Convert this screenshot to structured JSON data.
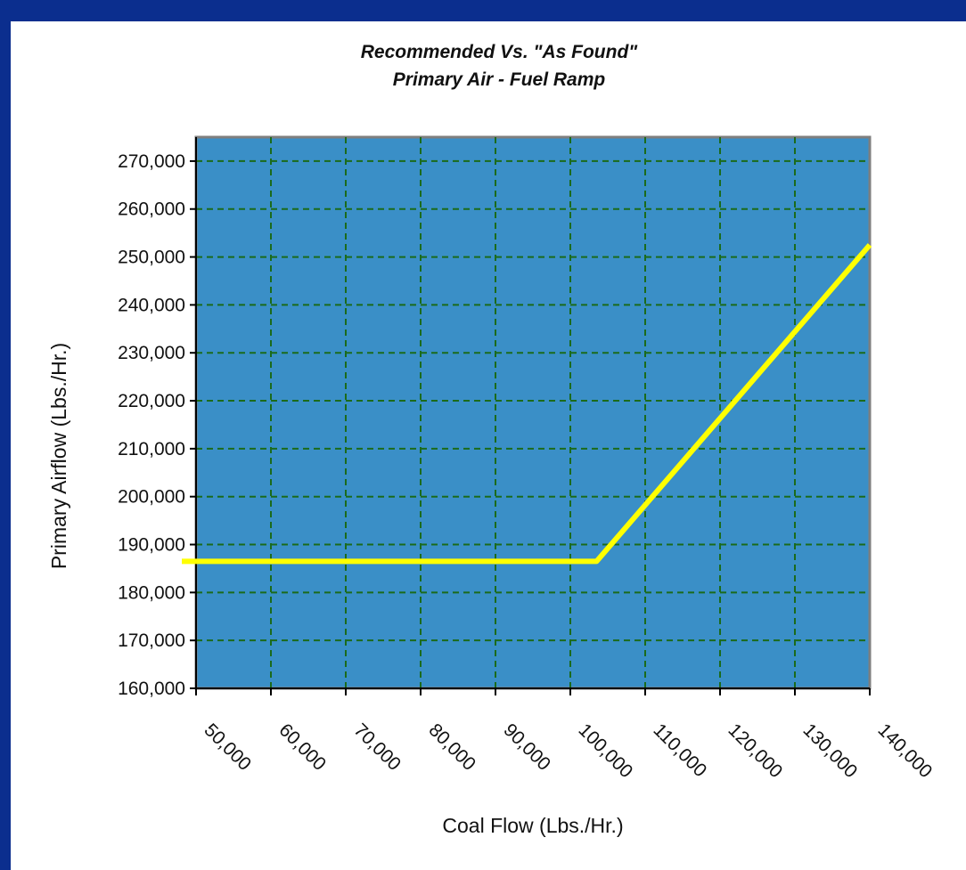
{
  "chart_data": {
    "type": "line",
    "title": "Recommended  Vs. \"As Found\"",
    "subtitle": "Primary Air - Fuel  Ramp",
    "xlabel": "Coal Flow (Lbs./Hr.)",
    "ylabel": "Primary Airflow (Lbs./Hr.)",
    "x_tick_labels": [
      "50,000",
      "60,000",
      "70,000",
      "80,000",
      "90,000",
      "100,000",
      "110,000",
      "120,000",
      "130,000",
      "140,000"
    ],
    "y_tick_labels": [
      "270,000",
      "260,000",
      "250,000",
      "240,000",
      "230,000",
      "220,000",
      "210,000",
      "200,000",
      "190,000",
      "180,000",
      "170,000",
      "160,000"
    ],
    "xlim": [
      50000,
      140000
    ],
    "ylim": [
      160000,
      275000
    ],
    "x_ticks": [
      50000,
      60000,
      70000,
      80000,
      90000,
      100000,
      110000,
      120000,
      130000,
      140000
    ],
    "y_ticks": [
      270000,
      260000,
      250000,
      240000,
      230000,
      220000,
      210000,
      200000,
      190000,
      180000,
      170000,
      160000
    ],
    "grid": true,
    "series": [
      {
        "x": [
          48000,
          103500,
          140000
        ],
        "y": [
          186500,
          186500,
          252500
        ],
        "color": "#ffff00"
      }
    ],
    "colors": {
      "plot_background": "#3a8fc7",
      "gridline": "#1b6b1b",
      "line": "#ffff00",
      "frame": "#7f7f7f",
      "border": "#0b2e8e"
    }
  }
}
